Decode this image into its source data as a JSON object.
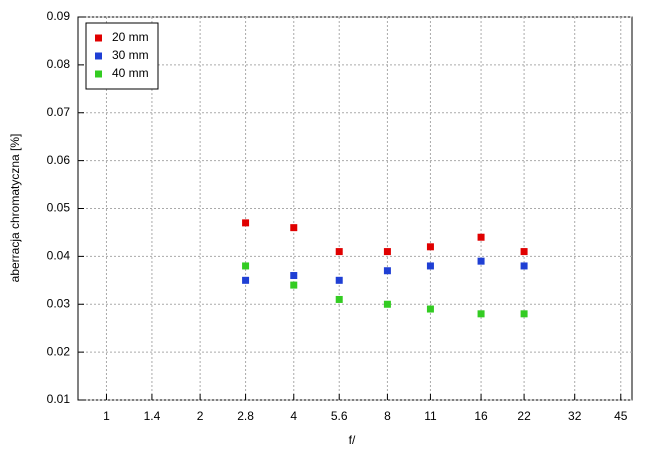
{
  "chart_data": {
    "type": "scatter",
    "xlabel": "f/",
    "ylabel": "aberracja chromatyczna [%]",
    "x": [
      2.8,
      4,
      5.6,
      8,
      11,
      16,
      22
    ],
    "series": [
      {
        "name": "20 mm",
        "color": "#e00000",
        "values": [
          0.047,
          0.046,
          0.041,
          0.041,
          0.042,
          0.044,
          0.041
        ]
      },
      {
        "name": "30 mm",
        "color": "#1f3fd4",
        "values": [
          0.035,
          0.036,
          0.035,
          0.037,
          0.038,
          0.039,
          0.038
        ]
      },
      {
        "name": "40 mm",
        "color": "#33cc22",
        "values": [
          0.038,
          0.034,
          0.031,
          0.03,
          0.029,
          0.028,
          0.028
        ]
      }
    ],
    "xlog": true,
    "xlim": [
      0.81,
      48.9
    ],
    "xticks": [
      1,
      1.4,
      2,
      2.8,
      4,
      5.6,
      8,
      11,
      16,
      22,
      32,
      45
    ],
    "ylim": [
      0.01,
      0.09
    ],
    "yticks": [
      0.01,
      0.02,
      0.03,
      0.04,
      0.05,
      0.06,
      0.07,
      0.08,
      0.09
    ],
    "grid": true,
    "legend": "upper-left"
  }
}
